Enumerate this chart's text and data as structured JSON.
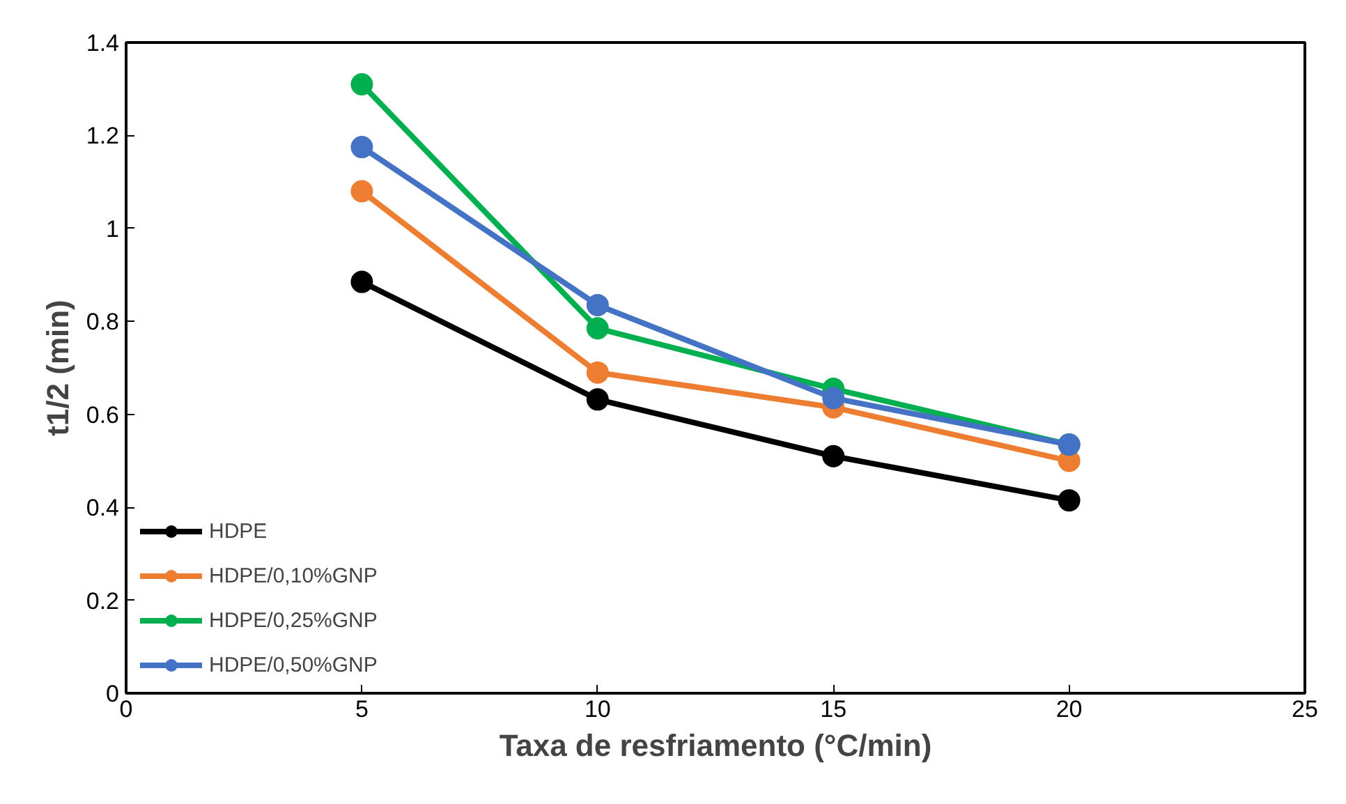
{
  "chart_data": {
    "type": "line",
    "xlabel": "Taxa de resfriamento (°C/min)",
    "ylabel": "t1/2 (min)",
    "x": [
      5,
      10,
      15,
      20
    ],
    "series": [
      {
        "name": "HDPE",
        "color": "#000000",
        "values": [
          0.885,
          0.632,
          0.51,
          0.415
        ]
      },
      {
        "name": "HDPE/0,10%GNP",
        "color": "#ed7d31",
        "values": [
          1.08,
          0.69,
          0.615,
          0.5
        ]
      },
      {
        "name": "HDPE/0,25%GNP",
        "color": "#00b050",
        "values": [
          1.31,
          0.785,
          0.655,
          0.535
        ]
      },
      {
        "name": "HDPE/0,50%GNP",
        "color": "#4472c4",
        "values": [
          1.175,
          0.835,
          0.635,
          0.535
        ]
      }
    ],
    "xlim": [
      0,
      25
    ],
    "xticks": [
      0,
      5,
      10,
      15,
      20,
      25
    ],
    "ylim": [
      0,
      1.4
    ],
    "yticks": [
      0,
      0.2,
      0.4,
      0.6,
      0.8,
      1,
      1.2,
      1.4
    ],
    "grid": false,
    "legend": "bottom left",
    "marker": "circle",
    "line_style": "solid"
  }
}
